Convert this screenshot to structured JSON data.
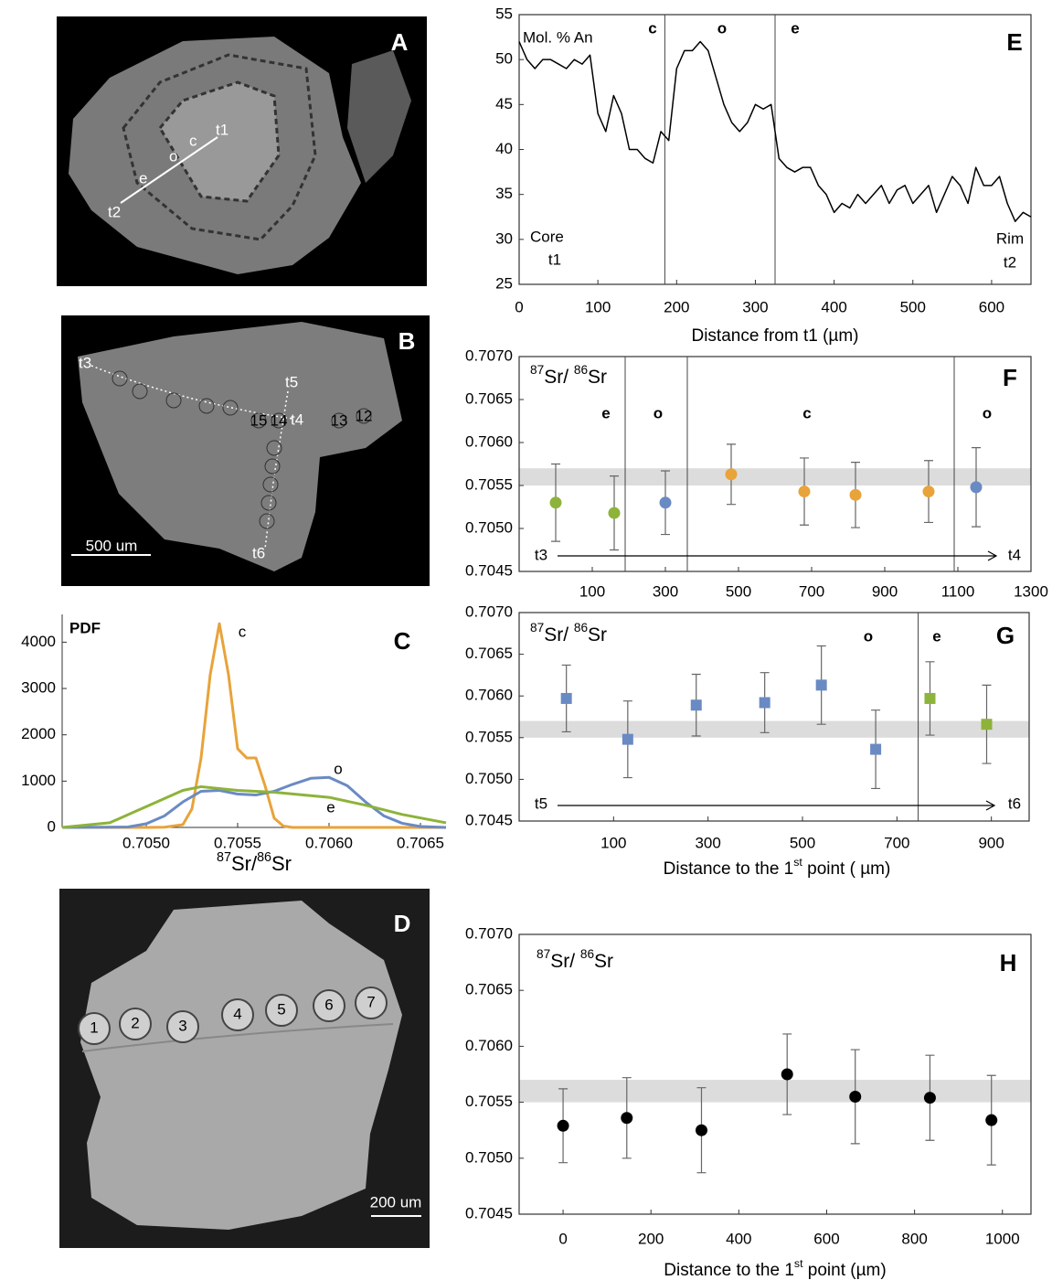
{
  "images": [
    {
      "panel": "A",
      "labels": [
        "t1",
        "c",
        "o",
        "e",
        "t2"
      ]
    },
    {
      "panel": "B",
      "labels": [
        "t3",
        "t5",
        "t4",
        "t6"
      ],
      "spots": [
        "15",
        "14",
        "13",
        "12"
      ],
      "scale": "500 um"
    },
    {
      "panel": "D",
      "spots": [
        "1",
        "2",
        "3",
        "4",
        "5",
        "6",
        "7"
      ],
      "scale": "200 um"
    }
  ],
  "chart_data": [
    {
      "panel": "E",
      "type": "line",
      "annotations": [
        "Mol. % An",
        "c",
        "o",
        "e",
        "Core",
        "t1",
        "Rim",
        "t2"
      ],
      "x_label": [
        "Distance from t1 (µm)"
      ],
      "xlim": [
        0,
        650
      ],
      "ylim": [
        25,
        55
      ],
      "xticks": [
        0,
        100,
        200,
        300,
        400,
        500,
        600
      ],
      "yticks": [
        25,
        30,
        35,
        40,
        45,
        50,
        55
      ],
      "vlines": [
        185,
        325
      ],
      "series": [
        {
          "color": "#000000",
          "x": [
            0,
            10,
            20,
            30,
            40,
            50,
            60,
            70,
            80,
            90,
            100,
            110,
            120,
            130,
            140,
            150,
            160,
            170,
            180,
            190,
            200,
            210,
            220,
            230,
            240,
            250,
            260,
            270,
            280,
            290,
            300,
            310,
            320,
            330,
            340,
            350,
            360,
            370,
            380,
            390,
            400,
            410,
            420,
            430,
            440,
            450,
            460,
            470,
            480,
            490,
            500,
            510,
            520,
            530,
            540,
            550,
            560,
            570,
            580,
            590,
            600,
            610,
            620,
            630,
            640,
            650
          ],
          "values": [
            52,
            50,
            49,
            50,
            50,
            49.5,
            49,
            50,
            49.5,
            50.5,
            44,
            42,
            46,
            44,
            40,
            40,
            39,
            38.5,
            42,
            41,
            49,
            51,
            51,
            52,
            51,
            48,
            45,
            43,
            42,
            43,
            45,
            44.5,
            45,
            39,
            38,
            37.5,
            38,
            38,
            36,
            35,
            33,
            34,
            33.5,
            35,
            34,
            35,
            36,
            34,
            35.5,
            36,
            34,
            35,
            36,
            33,
            35,
            37,
            36,
            34,
            38,
            36,
            36,
            37,
            34,
            32,
            33,
            32.5
          ]
        }
      ]
    },
    {
      "panel": "F",
      "type": "scatter",
      "y_label": [
        "87",
        "Sr/ ",
        "86",
        "Sr"
      ],
      "annotations": [
        "t3",
        "t4",
        "o"
      ],
      "xlim": [
        -100,
        1300
      ],
      "ylim": [
        0.7045,
        0.707
      ],
      "xticks": [
        100,
        300,
        500,
        700,
        900,
        1100,
        1300
      ],
      "yticks": [
        0.7045,
        {
          "value": 0.705,
          "label": "0.7050"
        },
        0.7055,
        {
          "value": 0.706,
          "label": "0.7060"
        },
        0.7065,
        {
          "value": 0.707,
          "label": "0.7070"
        }
      ],
      "band": [
        0.7055,
        0.7057
      ],
      "vlines": [
        190,
        360,
        1090
      ],
      "series": [
        {
          "name": "e",
          "color": "#8db33a",
          "marker": "circle",
          "x": [
            0,
            160
          ],
          "values": [
            0.7053,
            0.70518
          ],
          "errors": [
            0.00045,
            0.00043
          ]
        },
        {
          "name": "o",
          "color": "#6a8ac4",
          "marker": "circle",
          "x": [
            300,
            1150
          ],
          "values": [
            0.7053,
            0.70548
          ],
          "errors": [
            0.00037,
            0.00046
          ]
        },
        {
          "name": "c",
          "color": "#e8a33a",
          "marker": "circle",
          "x": [
            480,
            680,
            820,
            1020
          ],
          "values": [
            0.70563,
            0.70543,
            0.70539,
            0.70543
          ],
          "errors": [
            0.00035,
            0.00039,
            0.00038,
            0.00036
          ]
        }
      ]
    },
    {
      "panel": "C",
      "type": "line",
      "annotations": [
        "PDF"
      ],
      "x_label": [
        "87",
        "Sr/",
        "86",
        "Sr"
      ],
      "xlim": [
        0.70454,
        0.70664
      ],
      "ylim": [
        0,
        4600
      ],
      "xticks": [
        {
          "value": 0.705,
          "label": "0.7050"
        },
        0.7055,
        {
          "value": 0.706,
          "label": "0.7060"
        },
        0.7065
      ],
      "yticks": [
        0,
        1000,
        2000,
        3000,
        4000
      ],
      "band": [
        0.7055,
        0.7057
      ],
      "series": [
        {
          "name": "c",
          "color": "#e8a33a",
          "x": [
            0.70454,
            0.705,
            0.7051,
            0.7052,
            0.70525,
            0.7053,
            0.70535,
            0.7054,
            0.70545,
            0.7055,
            0.70555,
            0.7056,
            0.70565,
            0.7057,
            0.70575,
            0.7058,
            0.70664
          ],
          "values": [
            0,
            0,
            5,
            60,
            400,
            1500,
            3300,
            4400,
            3300,
            1700,
            1500,
            1500,
            900,
            200,
            30,
            0,
            0
          ]
        },
        {
          "name": "o",
          "color": "#6a8ac4",
          "x": [
            0.70454,
            0.7049,
            0.705,
            0.7051,
            0.7052,
            0.7053,
            0.7054,
            0.7055,
            0.7056,
            0.7057,
            0.7058,
            0.7059,
            0.706,
            0.7061,
            0.7062,
            0.7063,
            0.7064,
            0.7065,
            0.70664
          ],
          "values": [
            0,
            10,
            80,
            250,
            550,
            780,
            800,
            720,
            700,
            780,
            930,
            1060,
            1080,
            900,
            550,
            250,
            90,
            20,
            0
          ]
        },
        {
          "name": "e",
          "color": "#8db33a",
          "x": [
            0.70454,
            0.7048,
            0.705,
            0.7052,
            0.7053,
            0.7055,
            0.7057,
            0.706,
            0.7062,
            0.7064,
            0.70664
          ],
          "values": [
            0,
            100,
            450,
            800,
            880,
            800,
            760,
            650,
            480,
            280,
            100
          ]
        }
      ]
    },
    {
      "panel": "G",
      "type": "scatter",
      "y_label": [
        "87",
        "Sr/ ",
        "86",
        "Sr"
      ],
      "x_label": [
        "Distance to the 1",
        "st",
        " point ( µm)"
      ],
      "annotations": [
        "t5",
        "t6"
      ],
      "xlim": [
        -100,
        980
      ],
      "ylim": [
        0.7045,
        0.707
      ],
      "xticks": [
        100,
        300,
        500,
        700,
        900
      ],
      "yticks": [
        0.7045,
        {
          "value": 0.705,
          "label": "0.7050"
        },
        0.7055,
        {
          "value": 0.706,
          "label": "0.7060"
        },
        0.7065,
        {
          "value": 0.707,
          "label": "0.7070"
        }
      ],
      "band": [
        0.7055,
        0.7057
      ],
      "vlines": [
        745
      ],
      "series": [
        {
          "name": "o",
          "color": "#6a8ac4",
          "marker": "square",
          "x": [
            0,
            130,
            275,
            420,
            540,
            655
          ],
          "values": [
            0.70597,
            0.70548,
            0.70589,
            0.70592,
            0.70613,
            0.70536
          ],
          "errors": [
            0.0004,
            0.00046,
            0.00037,
            0.00036,
            0.00047,
            0.00047
          ]
        },
        {
          "name": "e",
          "color": "#8db33a",
          "marker": "square",
          "x": [
            770,
            890
          ],
          "values": [
            0.70597,
            0.70566
          ],
          "errors": [
            0.00044,
            0.00047
          ]
        }
      ]
    },
    {
      "panel": "H",
      "type": "scatter",
      "y_label": [
        "87",
        "Sr/ ",
        "86",
        "Sr"
      ],
      "x_label": [
        "Distance to the 1",
        "st",
        " point (µm)"
      ],
      "xlim": [
        -100,
        1065
      ],
      "ylim": [
        0.7045,
        0.707
      ],
      "xticks": [
        0,
        200,
        400,
        600,
        800,
        1000
      ],
      "yticks": [
        0.7045,
        {
          "value": 0.705,
          "label": "0.7050"
        },
        0.7055,
        {
          "value": 0.706,
          "label": "0.7060"
        },
        0.7065,
        {
          "value": 0.707,
          "label": "0.7070"
        }
      ],
      "band": [
        0.7055,
        0.7057
      ],
      "series": [
        {
          "color": "#000000",
          "marker": "circle",
          "x": [
            0,
            145,
            315,
            510,
            665,
            835,
            975
          ],
          "values": [
            0.70529,
            0.70536,
            0.70525,
            0.70575,
            0.70555,
            0.70554,
            0.70534
          ],
          "errors": [
            0.00033,
            0.00036,
            0.00038,
            0.00036,
            0.00042,
            0.00038,
            0.0004
          ]
        }
      ]
    }
  ]
}
